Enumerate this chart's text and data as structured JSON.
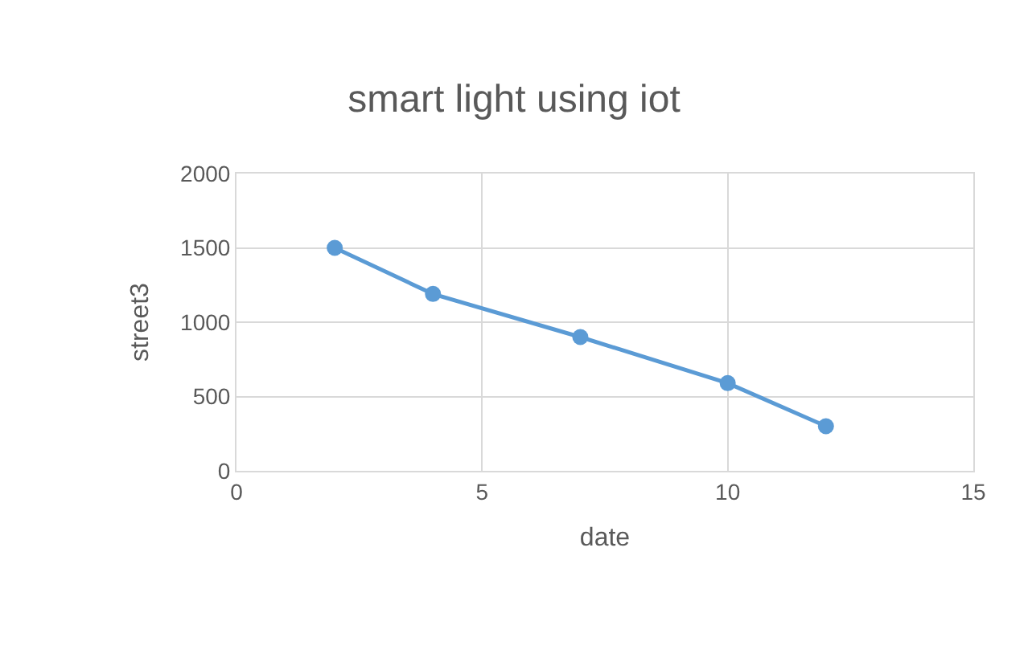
{
  "chart_data": {
    "type": "line",
    "title": "smart light using iot",
    "xlabel": "date",
    "ylabel": "street3",
    "x": [
      2,
      4,
      7,
      10,
      12
    ],
    "series": [
      {
        "color": "#5b9bd5",
        "values": [
          1500,
          1190,
          900,
          590,
          300
        ]
      }
    ],
    "xlim": [
      0,
      15
    ],
    "xticks": [
      0,
      5,
      10,
      15
    ],
    "ylim": [
      0,
      2000
    ],
    "yticks": [
      0,
      500,
      1000,
      1500,
      2000
    ],
    "grid": true,
    "marker": "circle",
    "line_style": "solid",
    "legend": false
  }
}
